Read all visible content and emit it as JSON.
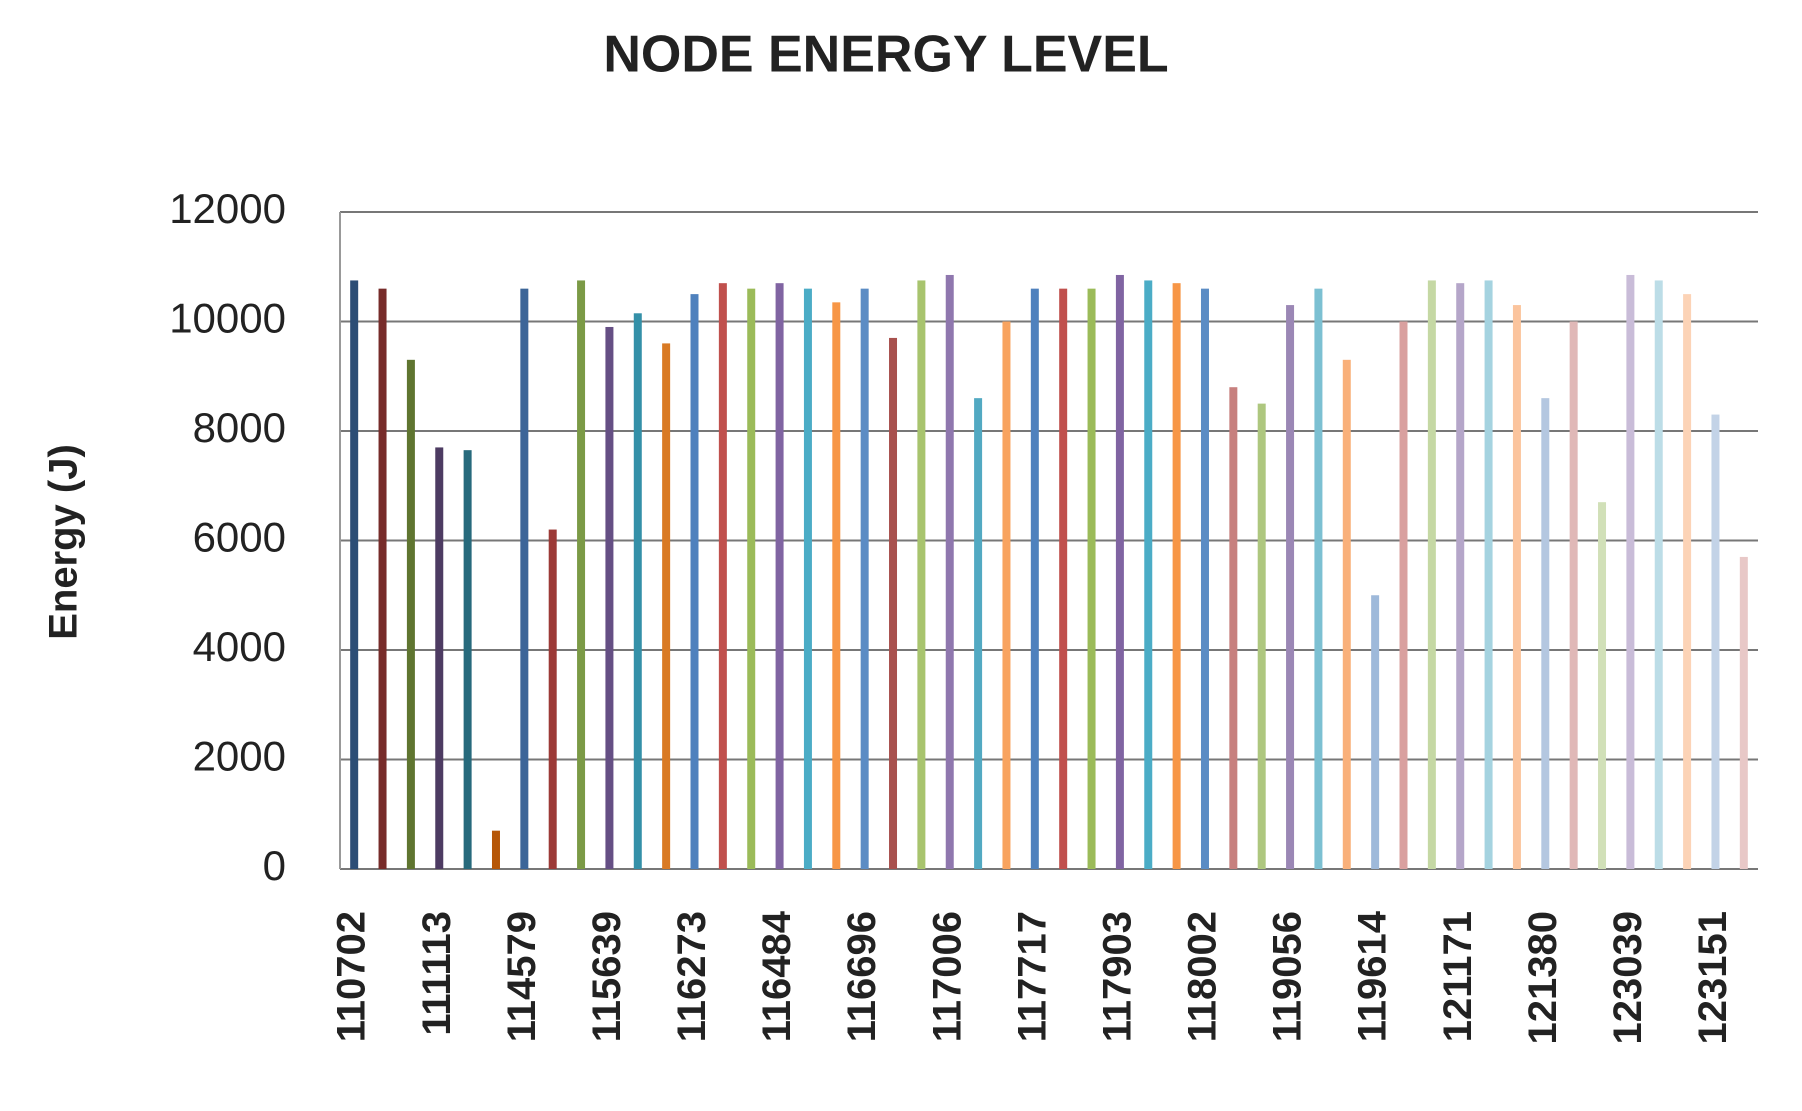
{
  "chart_data": {
    "type": "bar",
    "title": "NODE ENERGY LEVEL",
    "y_label": "Energy (J)",
    "categories": [
      "110702",
      null,
      null,
      "111113",
      null,
      null,
      "114579",
      null,
      null,
      "115639",
      null,
      null,
      "116273",
      null,
      null,
      "116484",
      null,
      null,
      "116696",
      null,
      null,
      "117006",
      null,
      null,
      "117717",
      null,
      null,
      "117903",
      null,
      null,
      "118002",
      null,
      null,
      "119056",
      null,
      null,
      "119614",
      null,
      null,
      "121171",
      null,
      null,
      "121380",
      null,
      null,
      "123039",
      null,
      null,
      "123151",
      null
    ],
    "values": [
      10750,
      10600,
      9300,
      7700,
      7650,
      700,
      10600,
      6200,
      10750,
      9900,
      10150,
      9600,
      10500,
      10700,
      10600,
      10700,
      10600,
      10350,
      10600,
      9700,
      10750,
      10850,
      8600,
      10000,
      10600,
      10600,
      10600,
      10850,
      10750,
      10700,
      10600,
      8800,
      8500,
      10300,
      10600,
      9300,
      5000,
      10000,
      10750,
      10700,
      10750,
      10300,
      8600,
      10000,
      6700,
      10850,
      10750,
      10500,
      8300,
      5700
    ],
    "colors": [
      "#2c4d75",
      "#772c2a",
      "#5f7530",
      "#4d3b62",
      "#276a7c",
      "#b65708",
      "#3c6598",
      "#9c3a37",
      "#7b9a46",
      "#654f84",
      "#3490a8",
      "#d97a24",
      "#4f81bd",
      "#c0504d",
      "#9bbb59",
      "#8064a2",
      "#4bacc6",
      "#f79646",
      "#5b8cc4",
      "#a8514e",
      "#a8c46e",
      "#8f77ae",
      "#52a9c2",
      "#f8a35f",
      "#4f81bd",
      "#c0504d",
      "#9bbb59",
      "#8064a2",
      "#4bacc6",
      "#f79646",
      "#5b8cc4",
      "#c7807e",
      "#aec77f",
      "#9b87b5",
      "#7cc0d2",
      "#f9b07a",
      "#9eb9da",
      "#d9a09f",
      "#c5d8a4",
      "#b5a6c9",
      "#a5d3e0",
      "#fbc49d",
      "#b4c7e0",
      "#e0b8b7",
      "#d1e0b8",
      "#c9bcd8",
      "#bcdde7",
      "#fcd3b6",
      "#c3d3e7",
      "#e8c8c7"
    ],
    "ylim": [
      0,
      12000
    ],
    "yticks": [
      0,
      2000,
      4000,
      6000,
      8000,
      10000,
      12000
    ],
    "grid": true
  }
}
